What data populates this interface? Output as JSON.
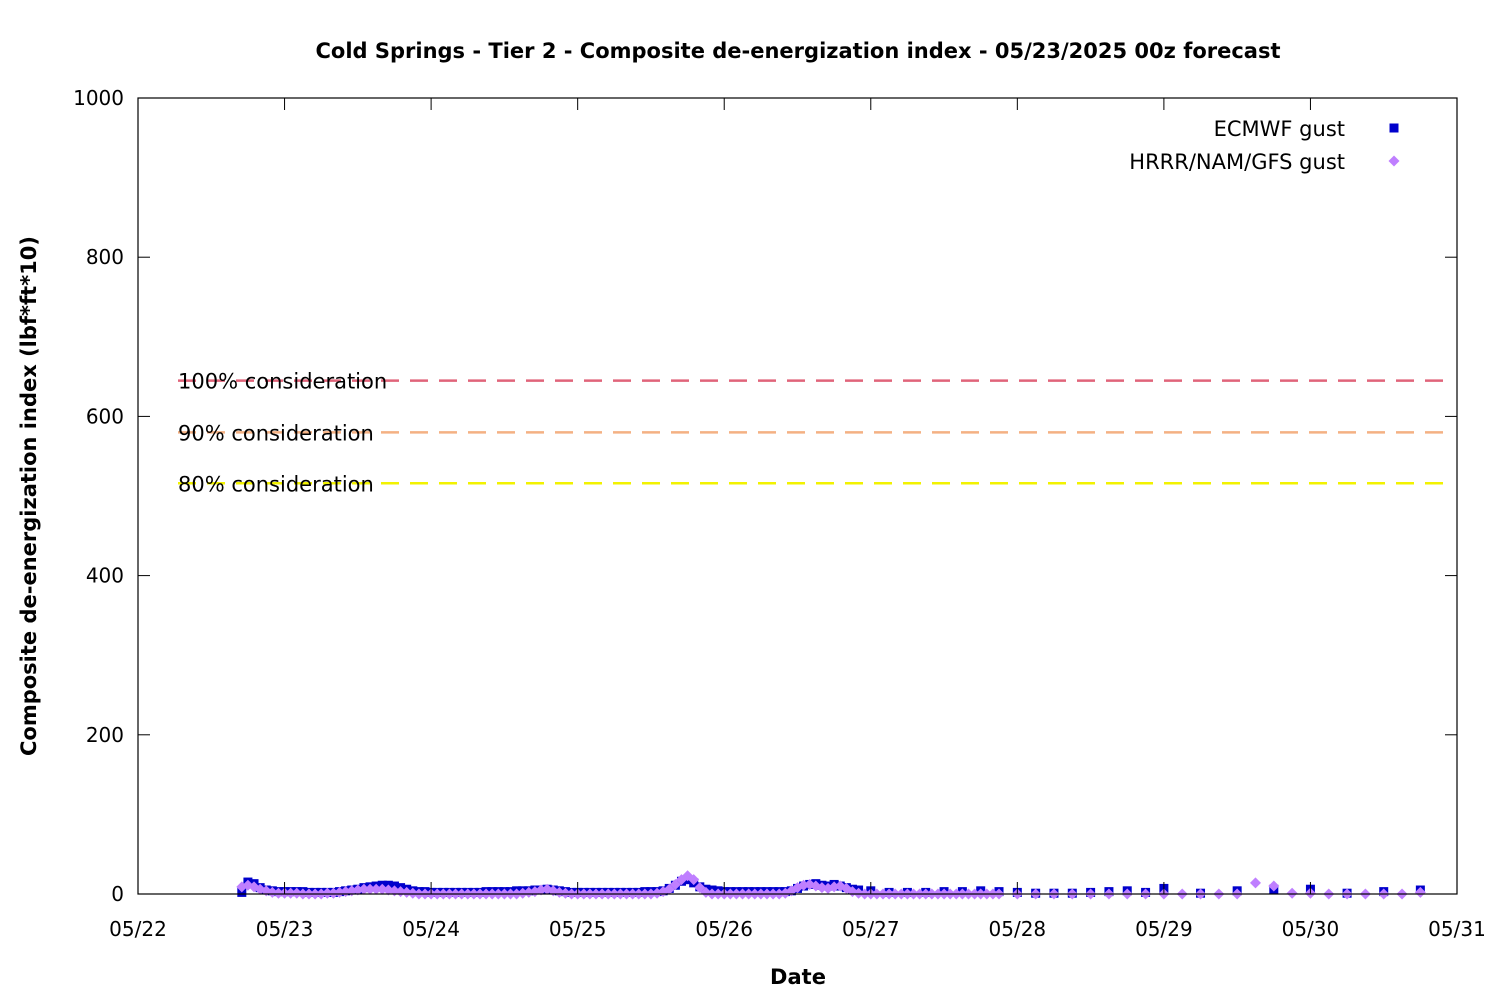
{
  "chart_data": {
    "type": "scatter",
    "title": "Cold Springs - Tier 2 - Composite de-energization index - 05/23/2025 00z forecast",
    "xlabel": "Date",
    "ylabel": "Composite de-energization index (lbf*ft*10)",
    "x_ticks": [
      "05/22",
      "05/23",
      "05/24",
      "05/25",
      "05/26",
      "05/27",
      "05/28",
      "05/29",
      "05/30",
      "05/31"
    ],
    "xlim": [
      "05/22",
      "05/31"
    ],
    "y_ticks": [
      0,
      200,
      400,
      600,
      800,
      1000
    ],
    "ylim": [
      0,
      1000
    ],
    "grid": false,
    "legend_position": "top-right",
    "thresholds": [
      {
        "label": "100% consideration",
        "value": 645,
        "color": "#e0647a"
      },
      {
        "label": "90% consideration",
        "value": 580,
        "color": "#f4b183"
      },
      {
        "label": "80% consideration",
        "value": 516,
        "color": "#f2f200"
      }
    ],
    "series": [
      {
        "name": "ECMWF gust",
        "color": "#0000cc",
        "marker": "square",
        "points": [
          [
            "05/22 17:00",
            2
          ],
          [
            "05/22 18:00",
            15
          ],
          [
            "05/22 19:00",
            13
          ],
          [
            "05/22 20:00",
            8
          ],
          [
            "05/22 21:00",
            5
          ],
          [
            "05/22 22:00",
            4
          ],
          [
            "05/22 23:00",
            3
          ],
          [
            "05/23 00:00",
            3
          ],
          [
            "05/23 01:00",
            3
          ],
          [
            "05/23 02:00",
            3
          ],
          [
            "05/23 03:00",
            3
          ],
          [
            "05/23 04:00",
            2
          ],
          [
            "05/23 05:00",
            2
          ],
          [
            "05/23 06:00",
            2
          ],
          [
            "05/23 07:00",
            2
          ],
          [
            "05/23 08:00",
            2
          ],
          [
            "05/23 09:00",
            3
          ],
          [
            "05/23 10:00",
            4
          ],
          [
            "05/23 11:00",
            5
          ],
          [
            "05/23 12:00",
            6
          ],
          [
            "05/23 13:00",
            8
          ],
          [
            "05/23 14:00",
            9
          ],
          [
            "05/23 15:00",
            10
          ],
          [
            "05/23 16:00",
            11
          ],
          [
            "05/23 17:00",
            11
          ],
          [
            "05/23 18:00",
            10
          ],
          [
            "05/23 19:00",
            8
          ],
          [
            "05/23 20:00",
            6
          ],
          [
            "05/23 21:00",
            4
          ],
          [
            "05/23 22:00",
            3
          ],
          [
            "05/23 23:00",
            3
          ],
          [
            "05/24 00:00",
            2
          ],
          [
            "05/24 01:00",
            2
          ],
          [
            "05/24 02:00",
            2
          ],
          [
            "05/24 03:00",
            2
          ],
          [
            "05/24 04:00",
            2
          ],
          [
            "05/24 05:00",
            2
          ],
          [
            "05/24 06:00",
            2
          ],
          [
            "05/24 07:00",
            2
          ],
          [
            "05/24 08:00",
            2
          ],
          [
            "05/24 09:00",
            3
          ],
          [
            "05/24 10:00",
            3
          ],
          [
            "05/24 11:00",
            3
          ],
          [
            "05/24 12:00",
            3
          ],
          [
            "05/24 13:00",
            3
          ],
          [
            "05/24 14:00",
            4
          ],
          [
            "05/24 15:00",
            4
          ],
          [
            "05/24 16:00",
            4
          ],
          [
            "05/24 17:00",
            5
          ],
          [
            "05/24 18:00",
            5
          ],
          [
            "05/24 19:00",
            6
          ],
          [
            "05/24 20:00",
            5
          ],
          [
            "05/24 21:00",
            4
          ],
          [
            "05/24 22:00",
            3
          ],
          [
            "05/24 23:00",
            2
          ],
          [
            "05/25 00:00",
            2
          ],
          [
            "05/25 01:00",
            2
          ],
          [
            "05/25 02:00",
            2
          ],
          [
            "05/25 03:00",
            2
          ],
          [
            "05/25 04:00",
            2
          ],
          [
            "05/25 05:00",
            2
          ],
          [
            "05/25 06:00",
            2
          ],
          [
            "05/25 07:00",
            2
          ],
          [
            "05/25 08:00",
            2
          ],
          [
            "05/25 09:00",
            2
          ],
          [
            "05/25 10:00",
            2
          ],
          [
            "05/25 11:00",
            3
          ],
          [
            "05/25 12:00",
            3
          ],
          [
            "05/25 13:00",
            3
          ],
          [
            "05/25 14:00",
            4
          ],
          [
            "05/25 15:00",
            7
          ],
          [
            "05/25 16:00",
            11
          ],
          [
            "05/25 17:00",
            16
          ],
          [
            "05/25 18:00",
            18
          ],
          [
            "05/25 19:00",
            14
          ],
          [
            "05/25 20:00",
            9
          ],
          [
            "05/25 21:00",
            6
          ],
          [
            "05/25 22:00",
            5
          ],
          [
            "05/25 23:00",
            4
          ],
          [
            "05/26 00:00",
            3
          ],
          [
            "05/26 01:00",
            3
          ],
          [
            "05/26 02:00",
            3
          ],
          [
            "05/26 03:00",
            3
          ],
          [
            "05/26 04:00",
            3
          ],
          [
            "05/26 05:00",
            3
          ],
          [
            "05/26 06:00",
            3
          ],
          [
            "05/26 07:00",
            3
          ],
          [
            "05/26 08:00",
            3
          ],
          [
            "05/26 09:00",
            3
          ],
          [
            "05/26 10:00",
            3
          ],
          [
            "05/26 11:00",
            4
          ],
          [
            "05/26 12:00",
            7
          ],
          [
            "05/26 13:00",
            10
          ],
          [
            "05/26 14:00",
            12
          ],
          [
            "05/26 15:00",
            13
          ],
          [
            "05/26 16:00",
            11
          ],
          [
            "05/26 17:00",
            10
          ],
          [
            "05/26 18:00",
            12
          ],
          [
            "05/26 19:00",
            10
          ],
          [
            "05/26 20:00",
            8
          ],
          [
            "05/26 21:00",
            6
          ],
          [
            "05/26 22:00",
            5
          ],
          [
            "05/27 00:00",
            4
          ],
          [
            "05/27 03:00",
            2
          ],
          [
            "05/27 06:00",
            2
          ],
          [
            "05/27 09:00",
            2
          ],
          [
            "05/27 12:00",
            3
          ],
          [
            "05/27 15:00",
            3
          ],
          [
            "05/27 18:00",
            4
          ],
          [
            "05/27 21:00",
            3
          ],
          [
            "05/28 00:00",
            2
          ],
          [
            "05/28 03:00",
            1
          ],
          [
            "05/28 06:00",
            1
          ],
          [
            "05/28 09:00",
            1
          ],
          [
            "05/28 12:00",
            2
          ],
          [
            "05/28 15:00",
            3
          ],
          [
            "05/28 18:00",
            4
          ],
          [
            "05/28 21:00",
            2
          ],
          [
            "05/29 00:00",
            7
          ],
          [
            "05/29 06:00",
            1
          ],
          [
            "05/29 12:00",
            4
          ],
          [
            "05/29 18:00",
            6
          ],
          [
            "05/30 00:00",
            6
          ],
          [
            "05/30 06:00",
            1
          ],
          [
            "05/30 12:00",
            3
          ],
          [
            "05/30 18:00",
            5
          ]
        ]
      },
      {
        "name": "HRRR/NAM/GFS gust",
        "color": "#bf7fff",
        "marker": "diamond",
        "points": [
          [
            "05/22 17:00",
            9
          ],
          [
            "05/22 18:00",
            11
          ],
          [
            "05/22 19:00",
            9
          ],
          [
            "05/22 20:00",
            6
          ],
          [
            "05/22 21:00",
            4
          ],
          [
            "05/22 22:00",
            2
          ],
          [
            "05/22 23:00",
            1
          ],
          [
            "05/23 00:00",
            1
          ],
          [
            "05/23 01:00",
            1
          ],
          [
            "05/23 02:00",
            1
          ],
          [
            "05/23 03:00",
            0
          ],
          [
            "05/23 04:00",
            0
          ],
          [
            "05/23 05:00",
            0
          ],
          [
            "05/23 06:00",
            0
          ],
          [
            "05/23 07:00",
            1
          ],
          [
            "05/23 08:00",
            1
          ],
          [
            "05/23 09:00",
            2
          ],
          [
            "05/23 10:00",
            3
          ],
          [
            "05/23 11:00",
            4
          ],
          [
            "05/23 12:00",
            5
          ],
          [
            "05/23 13:00",
            6
          ],
          [
            "05/23 14:00",
            6
          ],
          [
            "05/23 15:00",
            6
          ],
          [
            "05/23 16:00",
            6
          ],
          [
            "05/23 17:00",
            5
          ],
          [
            "05/23 18:00",
            4
          ],
          [
            "05/23 19:00",
            3
          ],
          [
            "05/23 20:00",
            2
          ],
          [
            "05/23 21:00",
            1
          ],
          [
            "05/23 22:00",
            0
          ],
          [
            "05/23 23:00",
            0
          ],
          [
            "05/24 00:00",
            0
          ],
          [
            "05/24 01:00",
            0
          ],
          [
            "05/24 02:00",
            0
          ],
          [
            "05/24 03:00",
            0
          ],
          [
            "05/24 04:00",
            0
          ],
          [
            "05/24 05:00",
            0
          ],
          [
            "05/24 06:00",
            0
          ],
          [
            "05/24 07:00",
            0
          ],
          [
            "05/24 08:00",
            0
          ],
          [
            "05/24 09:00",
            0
          ],
          [
            "05/24 10:00",
            0
          ],
          [
            "05/24 11:00",
            0
          ],
          [
            "05/24 12:00",
            0
          ],
          [
            "05/24 13:00",
            0
          ],
          [
            "05/24 14:00",
            0
          ],
          [
            "05/24 15:00",
            1
          ],
          [
            "05/24 16:00",
            2
          ],
          [
            "05/24 17:00",
            3
          ],
          [
            "05/24 18:00",
            5
          ],
          [
            "05/24 19:00",
            6
          ],
          [
            "05/24 20:00",
            4
          ],
          [
            "05/24 21:00",
            2
          ],
          [
            "05/24 22:00",
            1
          ],
          [
            "05/24 23:00",
            0
          ],
          [
            "05/25 00:00",
            0
          ],
          [
            "05/25 01:00",
            0
          ],
          [
            "05/25 02:00",
            0
          ],
          [
            "05/25 03:00",
            0
          ],
          [
            "05/25 04:00",
            0
          ],
          [
            "05/25 05:00",
            0
          ],
          [
            "05/25 06:00",
            0
          ],
          [
            "05/25 07:00",
            0
          ],
          [
            "05/25 08:00",
            0
          ],
          [
            "05/25 09:00",
            0
          ],
          [
            "05/25 10:00",
            0
          ],
          [
            "05/25 11:00",
            0
          ],
          [
            "05/25 12:00",
            0
          ],
          [
            "05/25 13:00",
            1
          ],
          [
            "05/25 14:00",
            3
          ],
          [
            "05/25 15:00",
            6
          ],
          [
            "05/25 16:00",
            12
          ],
          [
            "05/25 17:00",
            18
          ],
          [
            "05/25 18:00",
            23
          ],
          [
            "05/25 19:00",
            18
          ],
          [
            "05/25 20:00",
            8
          ],
          [
            "05/25 21:00",
            2
          ],
          [
            "05/25 22:00",
            0
          ],
          [
            "05/25 23:00",
            0
          ],
          [
            "05/26 00:00",
            0
          ],
          [
            "05/26 01:00",
            0
          ],
          [
            "05/26 02:00",
            0
          ],
          [
            "05/26 03:00",
            0
          ],
          [
            "05/26 04:00",
            0
          ],
          [
            "05/26 05:00",
            0
          ],
          [
            "05/26 06:00",
            0
          ],
          [
            "05/26 07:00",
            0
          ],
          [
            "05/26 08:00",
            0
          ],
          [
            "05/26 09:00",
            0
          ],
          [
            "05/26 10:00",
            1
          ],
          [
            "05/26 11:00",
            4
          ],
          [
            "05/26 12:00",
            8
          ],
          [
            "05/26 13:00",
            11
          ],
          [
            "05/26 14:00",
            12
          ],
          [
            "05/26 15:00",
            10
          ],
          [
            "05/26 16:00",
            8
          ],
          [
            "05/26 17:00",
            7
          ],
          [
            "05/26 18:00",
            9
          ],
          [
            "05/26 19:00",
            10
          ],
          [
            "05/26 20:00",
            7
          ],
          [
            "05/26 21:00",
            3
          ],
          [
            "05/26 22:00",
            1
          ],
          [
            "05/26 23:00",
            0
          ],
          [
            "05/27 00:00",
            0
          ],
          [
            "05/27 01:00",
            0
          ],
          [
            "05/27 02:00",
            0
          ],
          [
            "05/27 03:00",
            0
          ],
          [
            "05/27 04:00",
            0
          ],
          [
            "05/27 05:00",
            0
          ],
          [
            "05/27 06:00",
            0
          ],
          [
            "05/27 07:00",
            0
          ],
          [
            "05/27 08:00",
            0
          ],
          [
            "05/27 09:00",
            0
          ],
          [
            "05/27 10:00",
            0
          ],
          [
            "05/27 11:00",
            0
          ],
          [
            "05/27 12:00",
            0
          ],
          [
            "05/27 13:00",
            0
          ],
          [
            "05/27 14:00",
            0
          ],
          [
            "05/27 15:00",
            0
          ],
          [
            "05/27 16:00",
            0
          ],
          [
            "05/27 17:00",
            0
          ],
          [
            "05/27 18:00",
            0
          ],
          [
            "05/27 19:00",
            0
          ],
          [
            "05/27 20:00",
            0
          ],
          [
            "05/27 21:00",
            0
          ],
          [
            "05/28 00:00",
            0
          ],
          [
            "05/28 03:00",
            0
          ],
          [
            "05/28 06:00",
            0
          ],
          [
            "05/28 09:00",
            0
          ],
          [
            "05/28 12:00",
            0
          ],
          [
            "05/28 15:00",
            0
          ],
          [
            "05/28 18:00",
            0
          ],
          [
            "05/28 21:00",
            0
          ],
          [
            "05/29 00:00",
            0
          ],
          [
            "05/29 03:00",
            0
          ],
          [
            "05/29 06:00",
            0
          ],
          [
            "05/29 09:00",
            0
          ],
          [
            "05/29 12:00",
            0
          ],
          [
            "05/29 15:00",
            14
          ],
          [
            "05/29 18:00",
            10
          ],
          [
            "05/29 21:00",
            1
          ],
          [
            "05/30 00:00",
            1
          ],
          [
            "05/30 03:00",
            0
          ],
          [
            "05/30 06:00",
            0
          ],
          [
            "05/30 09:00",
            0
          ],
          [
            "05/30 12:00",
            0
          ],
          [
            "05/30 15:00",
            0
          ],
          [
            "05/30 18:00",
            2
          ]
        ]
      }
    ]
  }
}
